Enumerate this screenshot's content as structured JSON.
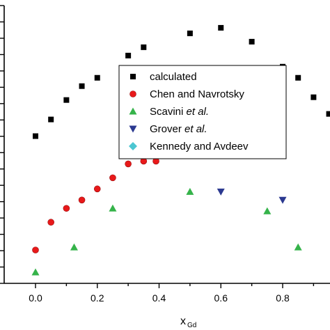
{
  "chart_data": {
    "type": "scatter",
    "xlabel": "x",
    "xlabel_sub": "Gd",
    "ylabel": "",
    "xlim": [
      -0.12,
      0.96
    ],
    "ylim": [
      0,
      1
    ],
    "xticks": [
      0.0,
      0.2,
      0.4,
      0.6,
      0.8
    ],
    "xtick_labels": [
      "0.0",
      "0.2",
      "0.4",
      "0.6",
      "0.8"
    ],
    "y_minor_ticks": 17,
    "legend_placement": "center-right",
    "series": [
      {
        "name": "calculated",
        "marker": "square",
        "color": "#000000",
        "x": [
          0.0,
          0.05,
          0.1,
          0.15,
          0.2,
          0.3,
          0.35,
          0.5,
          0.6,
          0.7,
          0.8,
          0.85,
          0.9,
          0.95
        ],
        "y": [
          0.53,
          0.59,
          0.66,
          0.71,
          0.74,
          0.82,
          0.85,
          0.9,
          0.92,
          0.87,
          0.78,
          0.74,
          0.67,
          0.61
        ]
      },
      {
        "name": "Chen and Navrotsky",
        "marker": "circle",
        "color": "#e8191a",
        "x": [
          0.0,
          0.05,
          0.1,
          0.15,
          0.2,
          0.25,
          0.3,
          0.35,
          0.39
        ],
        "y": [
          0.12,
          0.22,
          0.27,
          0.3,
          0.34,
          0.38,
          0.43,
          0.44,
          0.44
        ]
      },
      {
        "name": "Scavini et al.",
        "name_plain": "Scavini ",
        "name_italic": "et al.",
        "marker": "triangle-up",
        "color": "#35b34a",
        "x": [
          0.0,
          0.125,
          0.25,
          0.5,
          0.75,
          0.85
        ],
        "y": [
          0.04,
          0.13,
          0.27,
          0.33,
          0.26,
          0.13
        ]
      },
      {
        "name": "Grover et al.",
        "name_plain": "Grover ",
        "name_italic": "et al.",
        "marker": "triangle-down",
        "color": "#2b3990",
        "x": [
          0.6,
          0.8
        ],
        "y": [
          0.33,
          0.3
        ]
      },
      {
        "name": "Kennedy and Avdeev",
        "marker": "diamond",
        "color": "#4cc6d1",
        "x": [],
        "y": []
      }
    ]
  }
}
